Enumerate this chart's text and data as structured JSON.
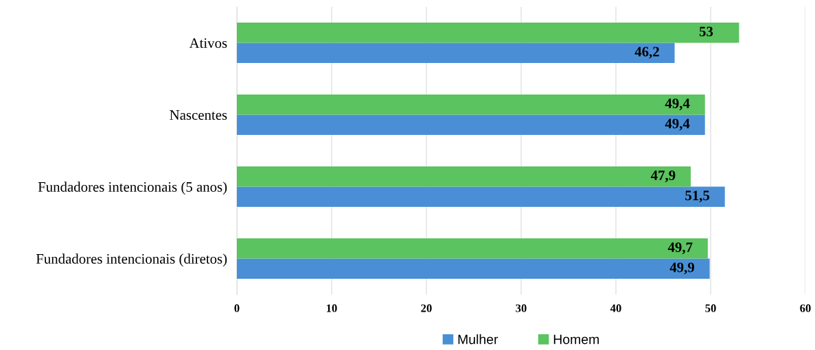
{
  "chart_data": {
    "type": "bar",
    "orientation": "horizontal",
    "categories": [
      "Ativos",
      "Nascentes",
      "Fundadores intencionais (5 anos)",
      "Fundadores intencionais (diretos)"
    ],
    "series": [
      {
        "name": "Mulher",
        "color": "#4a8fd6",
        "values": [
          46.2,
          49.4,
          51.5,
          49.9
        ],
        "value_labels": [
          "46,2",
          "49,4",
          "51,5",
          "49,9"
        ]
      },
      {
        "name": "Homem",
        "color": "#5bc35f",
        "values": [
          53,
          49.4,
          47.9,
          49.7
        ],
        "value_labels": [
          "53",
          "49,4",
          "47,9",
          "49,7"
        ]
      }
    ],
    "xlim": [
      0,
      60
    ],
    "xticks": [
      0,
      10,
      20,
      30,
      40,
      50,
      60
    ],
    "grid": "x",
    "legend": "bottom"
  }
}
